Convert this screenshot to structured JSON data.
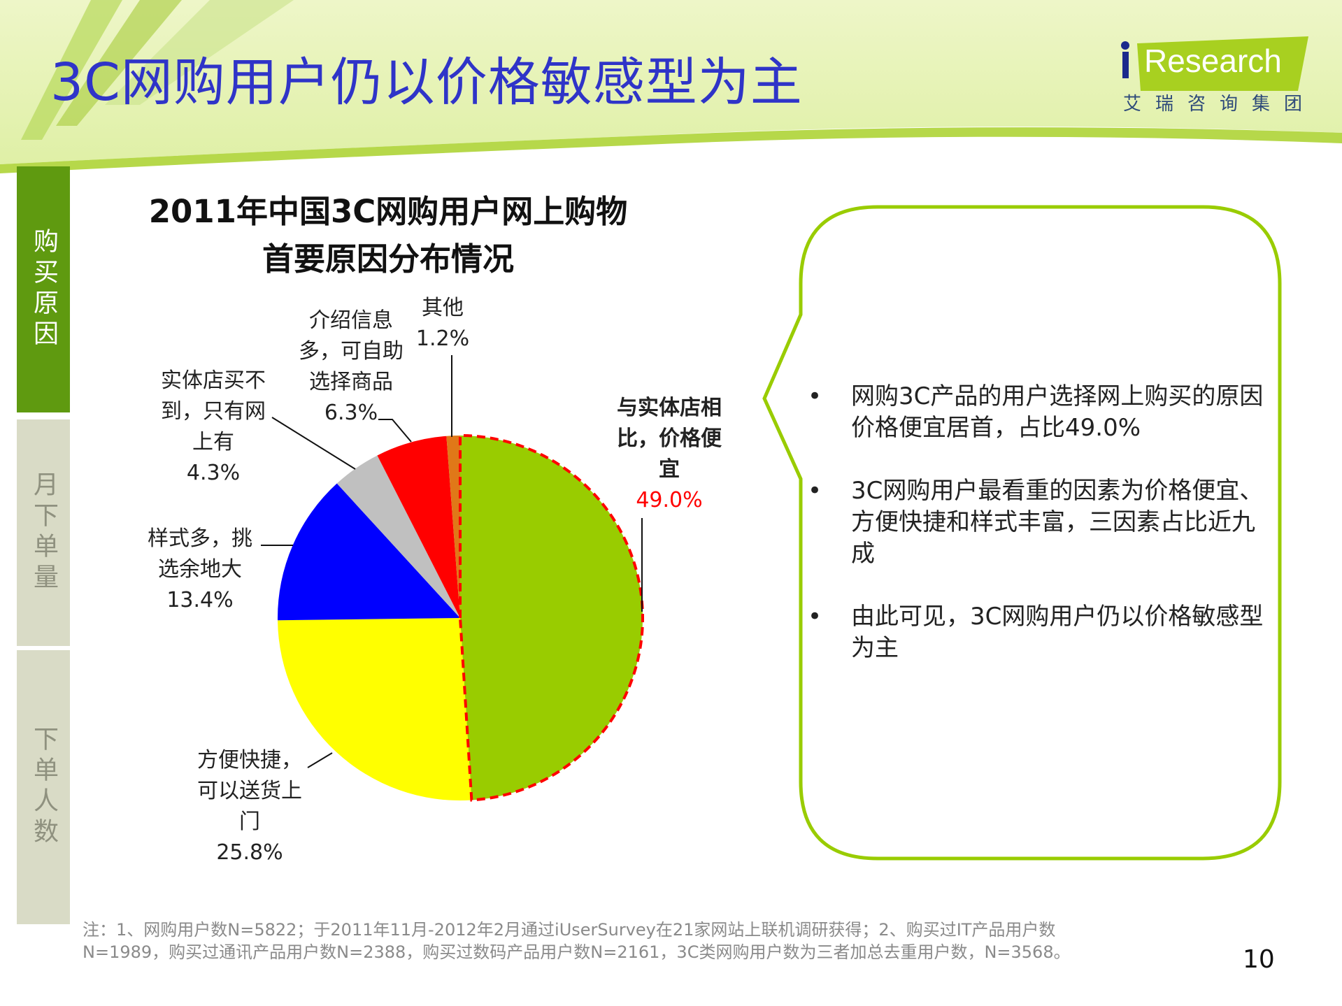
{
  "header": {
    "title": "3C网购用户仍以价格敏感型为主"
  },
  "logo": {
    "word": "Research",
    "cn": "艾瑞咨询集团"
  },
  "sidebar": {
    "items": [
      {
        "label": "购买原因",
        "active": true
      },
      {
        "label": "月下单量",
        "active": false
      },
      {
        "label": "下单人数",
        "active": false
      }
    ]
  },
  "colors": {
    "title": "#2f34c8",
    "accent": "#99cc00",
    "sidebar_active": "#5f9a10",
    "highlight": "#ff0000"
  },
  "chart_data": {
    "type": "pie",
    "title_lines": [
      "2011年中国3C网购用户网上购物",
      "首要原因分布情况"
    ],
    "start": "top",
    "direction": "clockwise",
    "slices": [
      {
        "label_lines": [
          "与实体店相",
          "比，价格便",
          "宜"
        ],
        "value": 49.0,
        "value_label": "49.0%",
        "color": "#99cc00",
        "highlight": true
      },
      {
        "label_lines": [
          "方便快捷，",
          "可以送货上",
          "门"
        ],
        "value": 25.8,
        "value_label": "25.8%",
        "color": "#ffff00"
      },
      {
        "label_lines": [
          "样式多，挑",
          "选余地大"
        ],
        "value": 13.4,
        "value_label": "13.4%",
        "color": "#0000ff"
      },
      {
        "label_lines": [
          "实体店买不",
          "到，只有网",
          "上有"
        ],
        "value": 4.3,
        "value_label": "4.3%",
        "color": "#c0c0c0"
      },
      {
        "label_lines": [
          "介绍信息",
          "多，可自助",
          "选择商品"
        ],
        "value": 6.3,
        "value_label": "6.3%",
        "color": "#ff0000"
      },
      {
        "label_lines": [
          "其他"
        ],
        "value": 1.2,
        "value_label": "1.2%",
        "color": "#e07818"
      }
    ]
  },
  "callout": {
    "bullet": "•",
    "points": [
      "网购3C产品的用户选择网上购买的原因价格便宜居首，占比49.0%",
      "3C网购用户最看重的因素为价格便宜、方便快捷和样式丰富，三因素占比近九成",
      "由此可见，3C网购用户仍以价格敏感型为主"
    ]
  },
  "footnote": {
    "lines": [
      "注：1、网购用户数N=5822；于2011年11月-2012年2月通过iUserSurvey在21家网站上联机调研获得；2、购买过IT产品用户数",
      "N=1989，购买过通讯产品用户数N=2388，购买过数码产品用户数N=2161，3C类网购用户数为三者加总去重用户数，N=3568。"
    ]
  },
  "page_number": "10"
}
